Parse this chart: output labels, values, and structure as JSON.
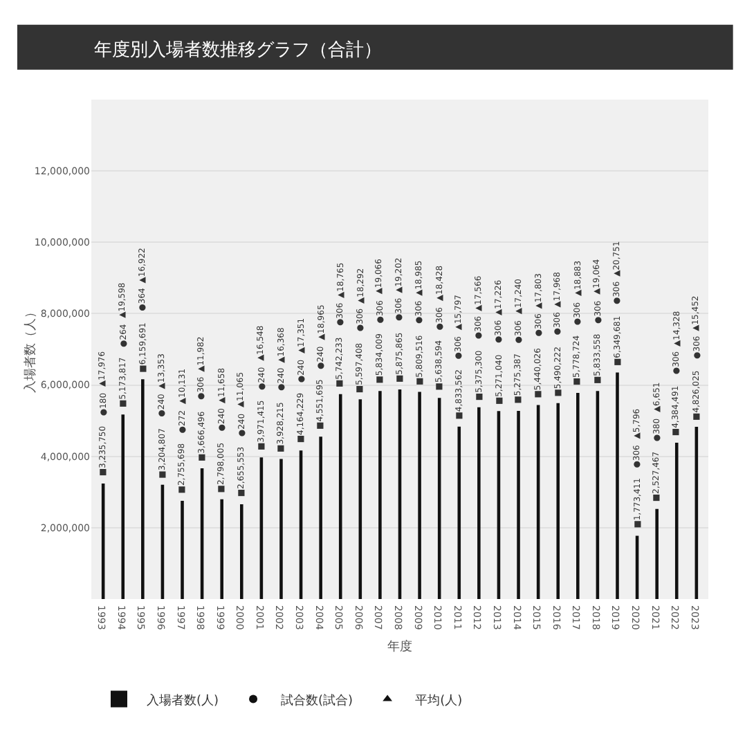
{
  "chart_data": {
    "type": "bar",
    "title": "年度別入場者数推移グラフ（合計）",
    "xlabel": "年度",
    "ylabel": "入場者数（人）",
    "categories": [
      "1993",
      "1994",
      "1995",
      "1996",
      "1997",
      "1998",
      "1999",
      "2000",
      "2001",
      "2002",
      "2003",
      "2004",
      "2005",
      "2006",
      "2007",
      "2008",
      "2009",
      "2010",
      "2011",
      "2012",
      "2013",
      "2014",
      "2015",
      "2016",
      "2017",
      "2018",
      "2019",
      "2020",
      "2021",
      "2022",
      "2023"
    ],
    "series": [
      {
        "name": "入場者数(人)",
        "color": "#111111",
        "values": [
          3235750,
          5173817,
          6159691,
          3204807,
          2755698,
          3666496,
          2798005,
          2655553,
          3971415,
          3928215,
          4164229,
          4551695,
          5742233,
          5597408,
          5834009,
          5875865,
          5809516,
          5638594,
          4833562,
          5375300,
          5271040,
          5275387,
          5440026,
          5490222,
          5778724,
          5833558,
          6349681,
          1773411,
          2527467,
          4384491,
          4826025
        ],
        "value_labels": [
          "■3,235,750",
          "■5,173,817",
          "■6,159,691",
          "■3,204,807",
          "■2,755,698",
          "■3,666,496",
          "■2,798,005",
          "■2,655,553",
          "■3,971,415",
          "■3,928,215",
          "■4,164,229",
          "■4,551,695",
          "■5,742,233",
          "■5,597,408",
          "■5,834,009",
          "■5,875,865",
          "■5,809,516",
          "■5,638,594",
          "■4,833,562",
          "■5,375,300",
          "■5,271,040",
          "■5,275,387",
          "■5,440,026",
          "■5,490,222",
          "■5,778,724",
          "■5,833,558",
          "■6,349,681",
          "■1,773,411",
          "■2,527,467",
          "■4,384,491",
          "■4,826,025"
        ]
      },
      {
        "name": "試合数(試合)",
        "type": "scatter",
        "color": "#111111",
        "marker": "circle",
        "values": [
          null,
          null,
          null,
          null,
          null,
          null,
          null,
          null,
          null,
          null,
          null,
          null,
          null,
          null,
          null,
          null,
          null,
          null,
          null,
          null,
          null,
          null,
          null,
          null,
          null,
          null,
          null,
          null,
          null,
          null,
          null
        ],
        "value_labels": [
          "●180",
          "●264",
          "●364",
          "●240",
          "●272",
          "●306",
          "●240",
          "●240",
          "●240",
          "●240",
          "●240",
          "●240",
          "●306",
          "●306",
          "●306",
          "●306",
          "●306",
          "●306",
          "●306",
          "●306",
          "●306",
          "●306",
          "●306",
          "●306",
          "●306",
          "●306",
          "●306",
          "●306",
          "●380",
          "●306",
          "●306"
        ]
      },
      {
        "name": "平均(人)",
        "type": "scatter",
        "color": "#111111",
        "marker": "triangle",
        "values": [
          null,
          null,
          null,
          null,
          null,
          null,
          null,
          null,
          null,
          null,
          null,
          null,
          null,
          null,
          null,
          null,
          null,
          null,
          null,
          null,
          null,
          null,
          null,
          null,
          null,
          null,
          null,
          null,
          null,
          null,
          null
        ],
        "value_labels": [
          "▲17,976",
          "▲19,598",
          "▲16,922",
          "▲13,353",
          "▲10,131",
          "▲11,982",
          "▲11,658",
          "▲11,065",
          "▲16,548",
          "▲16,368",
          "▲17,351",
          "▲18,965",
          "▲18,765",
          "▲18,292",
          "▲19,066",
          "▲19,202",
          "▲18,985",
          "▲18,428",
          "▲15,797",
          "▲17,566",
          "▲17,226",
          "▲17,240",
          "▲17,803",
          "▲17,968",
          "▲18,883",
          "▲19,064",
          "▲20,751",
          "▲5,796",
          "▲6,651",
          "▲14,328",
          "▲15,452"
        ]
      }
    ],
    "ylim": [
      0,
      14000000
    ],
    "yticks": [
      {
        "value": 2000000,
        "label": "2,000,000"
      },
      {
        "value": 4000000,
        "label": "4,000,000"
      },
      {
        "value": 6000000,
        "label": "6,000,000"
      },
      {
        "value": 8000000,
        "label": "8,000,000"
      },
      {
        "value": 10000000,
        "label": "10,000,000"
      },
      {
        "value": 12000000,
        "label": "12,000,000"
      }
    ],
    "grid": "y",
    "legend": "bottom left"
  }
}
